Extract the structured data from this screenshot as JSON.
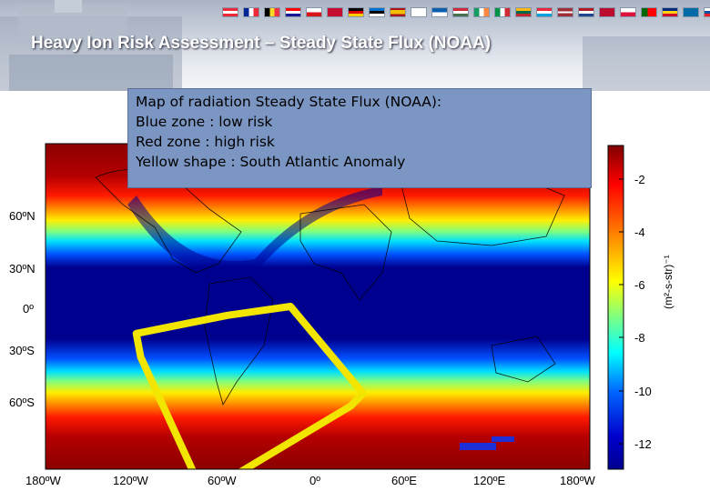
{
  "slide": {
    "title": "Heavy Ion Risk Assessment – Steady State Flux (NOAA)"
  },
  "info_box": {
    "lines": [
      "Map of radiation Steady State Flux (NOAA):",
      "Blue zone : low risk",
      "Red zone : high risk",
      "Yellow shape : South Atlantic Anomaly"
    ]
  },
  "map": {
    "lat_ticks": [
      {
        "label": "60ºN",
        "lat": 60
      },
      {
        "label": "30ºN",
        "lat": 30
      },
      {
        "label": "0º",
        "lat": 0
      },
      {
        "label": "30ºS",
        "lat": -30
      },
      {
        "label": "60ºS",
        "lat": -60
      }
    ],
    "lon_ticks": [
      {
        "label": "180ºW",
        "lon": -180
      },
      {
        "label": "120ºW",
        "lon": -120
      },
      {
        "label": "60ºW",
        "lon": -60
      },
      {
        "label": "0º",
        "lon": 0
      },
      {
        "label": "60ºE",
        "lon": 60
      },
      {
        "label": "120ºE",
        "lon": 120
      },
      {
        "label": "180ºW",
        "lon": 180
      }
    ],
    "saa_polygon_lonlat": [
      [
        -120,
        -15
      ],
      [
        -60,
        -5
      ],
      [
        -18,
        0
      ],
      [
        30,
        -48
      ],
      [
        22,
        -55
      ],
      [
        -52,
        -92
      ],
      [
        -82,
        -92
      ],
      [
        -117,
        -28
      ]
    ],
    "colors": {
      "high": "#8b0000",
      "low": "#00008f",
      "saa": "#f2e600"
    }
  },
  "colorbar": {
    "ticks": [
      "-2",
      "-4",
      "-6",
      "-8",
      "-10",
      "-12"
    ],
    "label": "(m²-s-str)⁻¹"
  }
}
